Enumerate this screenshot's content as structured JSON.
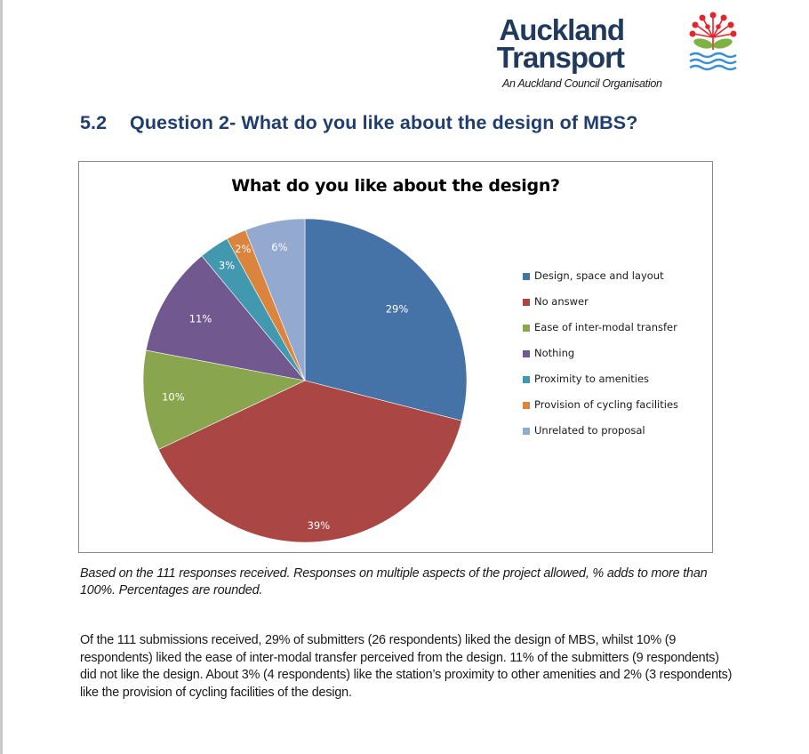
{
  "logo": {
    "line1": "Auckland",
    "line2": "Transport",
    "subtitle": "An Auckland Council Organisation",
    "icon": "pohutukawa-flower-waves-icon",
    "colors": {
      "text": "#1f3a5c",
      "flower": "#e3262b",
      "leaf": "#7cb342",
      "waves": "#3a8fd0"
    }
  },
  "heading": {
    "number": "5.2",
    "title": "Question 2- What do you like about the design of MBS?"
  },
  "chart_data": {
    "type": "pie",
    "title": "What do you like about the design?",
    "legend_position": "right",
    "categories": [
      "Design, space and layout",
      "No answer",
      "Ease of inter-modal transfer",
      "Nothing",
      "Proximity to amenities",
      "Provision of cycling facilities",
      "Unrelated to proposal"
    ],
    "values": [
      29,
      39,
      10,
      11,
      3,
      2,
      6
    ],
    "labels": [
      "29%",
      "39%",
      "10%",
      "11%",
      "3%",
      "2%",
      "6%"
    ],
    "colors": [
      "#4572a7",
      "#aa4643",
      "#89a54e",
      "#71588f",
      "#4198af",
      "#db843d",
      "#93a9cf"
    ],
    "start_angle_deg": 0,
    "direction": "clockwise",
    "unit": "%"
  },
  "legend": {
    "items": [
      {
        "label": "Design, space and layout",
        "color": "#4572a7"
      },
      {
        "label": "No answer",
        "color": "#aa4643"
      },
      {
        "label": "Ease of inter-modal transfer",
        "color": "#89a54e"
      },
      {
        "label": "Nothing",
        "color": "#71588f"
      },
      {
        "label": "Proximity to amenities",
        "color": "#4198af"
      },
      {
        "label": "Provision of cycling facilities",
        "color": "#db843d"
      },
      {
        "label": "Unrelated to proposal",
        "color": "#93a9cf"
      }
    ]
  },
  "caption": "Based on the 111 responses received. Responses on multiple aspects of the project allowed, % adds to more than 100%. Percentages are rounded.",
  "paragraph": "Of the 111 submissions received, 29% of submitters (26 respondents) liked the design of MBS, whilst 10% (9 respondents) liked the ease of inter-modal transfer perceived from the design. 11% of the submitters (9 respondents) did not like the design. About 3% (4 respondents) like the station’s proximity to other amenities and 2% (3 respondents) like the provision of cycling facilities of the design."
}
